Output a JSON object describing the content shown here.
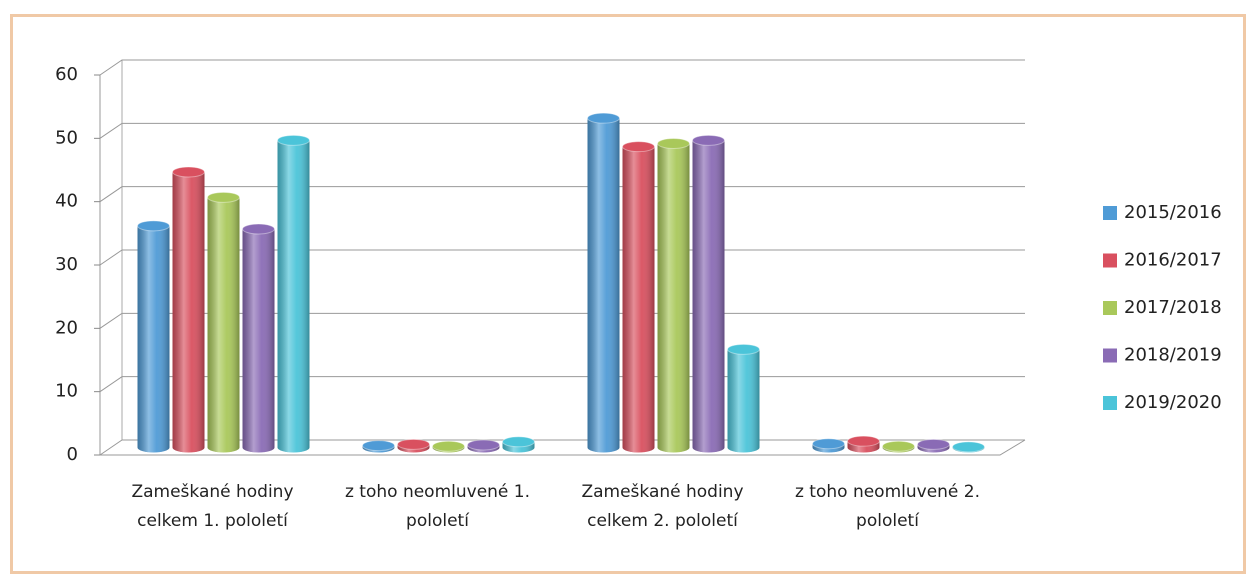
{
  "chart_data": {
    "type": "bar3d",
    "categories": [
      "Zameškané hodiny celkem  1. pololetí",
      "z toho neomluvené 1. pololetí",
      "Zameškané hodiny celkem 2. pololetí",
      "z toho neomluvené 2. pololetí"
    ],
    "series": [
      {
        "name": "2015/2016",
        "color": "#4f9bd6",
        "values": [
          35,
          0.3,
          52,
          0.6
        ]
      },
      {
        "name": "2016/2017",
        "color": "#d9505f",
        "values": [
          43.5,
          0.5,
          47.5,
          1.0
        ]
      },
      {
        "name": "2017/2018",
        "color": "#a9c85a",
        "values": [
          39.5,
          0.2,
          48,
          0.2
        ]
      },
      {
        "name": "2018/2019",
        "color": "#8a6bb5",
        "values": [
          34.5,
          0.4,
          48.5,
          0.5
        ]
      },
      {
        "name": "2019/2020",
        "color": "#4bc4d9",
        "values": [
          48.5,
          0.9,
          15.5,
          0.1
        ]
      }
    ],
    "ylim": [
      0,
      60
    ],
    "yticks": [
      0,
      10,
      20,
      30,
      40,
      50,
      60
    ],
    "grid": true,
    "legend": "right"
  }
}
